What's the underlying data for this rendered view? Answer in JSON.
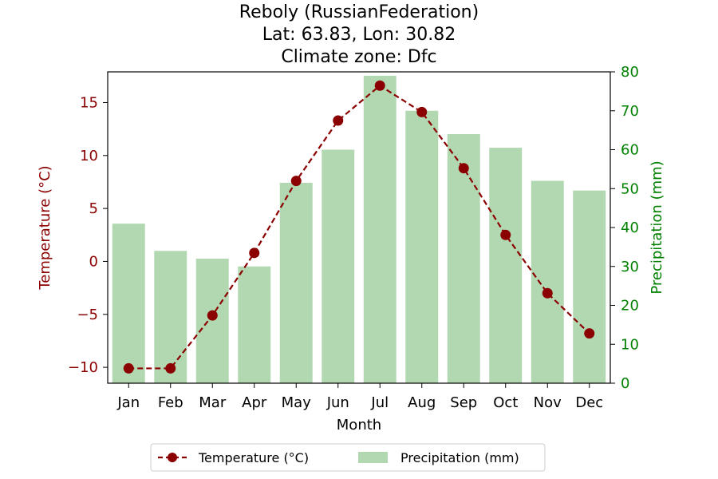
{
  "chart_data": {
    "type": "bar+line",
    "title_lines": [
      "Reboly (RussianFederation)",
      "Lat: 63.83, Lon: 30.82",
      "Climate zone: Dfc"
    ],
    "xlabel": "Month",
    "ylabel_left": "Temperature (°C)",
    "ylabel_right": "Precipitation (mm)",
    "categories": [
      "Jan",
      "Feb",
      "Mar",
      "Apr",
      "May",
      "Jun",
      "Jul",
      "Aug",
      "Sep",
      "Oct",
      "Nov",
      "Dec"
    ],
    "temperature": {
      "name": "Temperature (°C)",
      "values": [
        -10.1,
        -10.1,
        -5.1,
        0.8,
        7.6,
        13.3,
        16.6,
        14.1,
        8.8,
        2.5,
        -3.0,
        -6.8
      ],
      "color": "#8b0000"
    },
    "precipitation": {
      "name": "Precipitation (mm)",
      "values": [
        41,
        34,
        32,
        30,
        51.5,
        60,
        79,
        70,
        64,
        60.5,
        52,
        49.5
      ],
      "color": "#b2d8b2"
    },
    "ylim_left": [
      -11.5,
      17.9
    ],
    "ylim_right": [
      0,
      80
    ],
    "yticks_left": [
      -10,
      -5,
      0,
      5,
      10,
      15
    ],
    "yticks_left_labels": [
      "−10",
      "−5",
      "0",
      "5",
      "10",
      "15"
    ],
    "yticks_right": [
      0,
      10,
      20,
      30,
      40,
      50,
      60,
      70,
      80
    ],
    "yticks_right_labels": [
      "0",
      "10",
      "20",
      "30",
      "40",
      "50",
      "60",
      "70",
      "80"
    ],
    "left_axis_color": "#8b0000",
    "right_axis_color": "#008000",
    "grid": false,
    "legend_position": "bottom-center"
  }
}
